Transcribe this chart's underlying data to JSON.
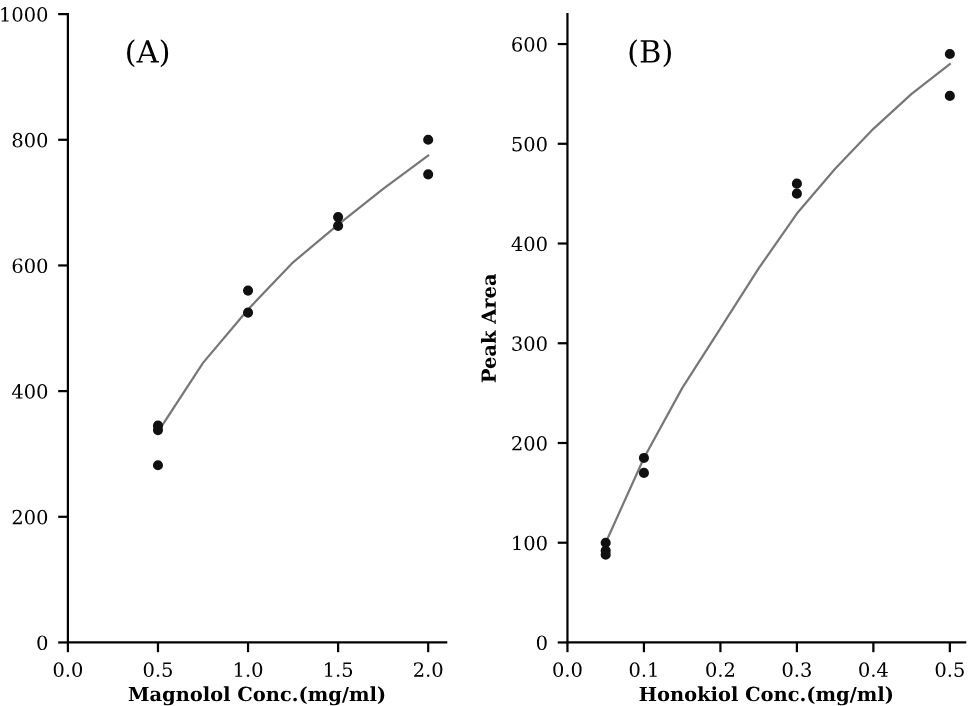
{
  "chart_data": [
    {
      "type": "scatter",
      "annotations": [
        "(A)"
      ],
      "xlabel": "Magnolol Conc.(mg/ml)",
      "xlim": [
        0,
        2.1
      ],
      "xticks": [
        {
          "value": 0,
          "label": "0.0"
        },
        {
          "value": 0.5,
          "label": "0.5"
        },
        {
          "value": 1,
          "label": "1.0"
        },
        {
          "value": 1.5,
          "label": "1.5"
        },
        {
          "value": 2,
          "label": "2.0"
        }
      ],
      "ylim": [
        0,
        1000
      ],
      "yticks": [
        0,
        200,
        400,
        600,
        800,
        1000
      ],
      "grid": false,
      "legend": false,
      "series": [
        {
          "marker": "circle",
          "color": "#111111",
          "x": [
            0.5,
            0.5,
            0.5,
            1.0,
            1.0,
            1.5,
            1.5,
            2.0,
            2.0
          ],
          "values": [
            345,
            338,
            282,
            560,
            525,
            677,
            663,
            800,
            745
          ]
        },
        {
          "type": "line",
          "marker": "none",
          "color": "#777777",
          "x": [
            0.5,
            0.75,
            1.0,
            1.25,
            1.5,
            1.75,
            2.0
          ],
          "values": [
            335,
            445,
            530,
            605,
            665,
            722,
            775
          ]
        }
      ]
    },
    {
      "type": "scatter",
      "annotations": [
        "(B)"
      ],
      "xlabel": "Honokiol Conc.(mg/ml)",
      "ylabel": "Peak Area",
      "xlim": [
        0,
        0.52
      ],
      "xticks": [
        {
          "value": 0,
          "label": "0.0"
        },
        0.1,
        0.2,
        0.3,
        0.4,
        0.5
      ],
      "ylim": [
        0,
        630
      ],
      "yticks": [
        0,
        100,
        200,
        300,
        400,
        500,
        600
      ],
      "grid": false,
      "legend": false,
      "series": [
        {
          "marker": "circle",
          "color": "#111111",
          "x": [
            0.05,
            0.05,
            0.05,
            0.1,
            0.1,
            0.3,
            0.3,
            0.5,
            0.5
          ],
          "values": [
            100,
            92,
            88,
            185,
            170,
            460,
            450,
            590,
            548
          ]
        },
        {
          "type": "line",
          "marker": "none",
          "color": "#777777",
          "x": [
            0.05,
            0.1,
            0.15,
            0.2,
            0.25,
            0.3,
            0.35,
            0.4,
            0.45,
            0.5
          ],
          "values": [
            100,
            185,
            255,
            315,
            375,
            430,
            475,
            515,
            550,
            580
          ]
        }
      ]
    }
  ]
}
